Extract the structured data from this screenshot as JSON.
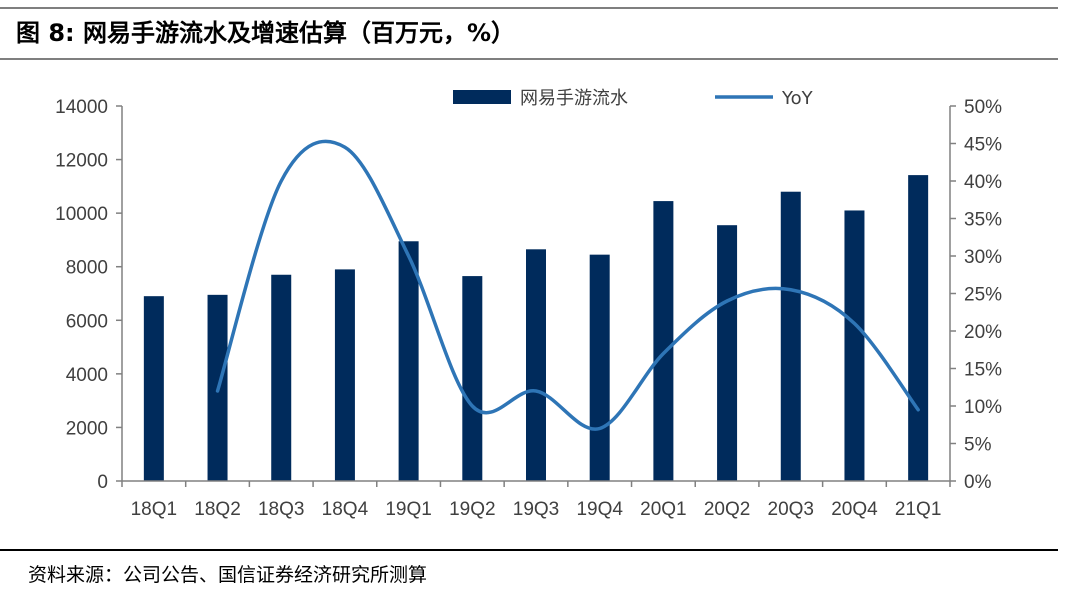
{
  "figure": {
    "title": "图 8:  网易手游流水及增速估算（百万元，%）",
    "source": "资料来源：公司公告、国信证券经济研究所测算"
  },
  "chart_data": {
    "type": "bar+line",
    "categories": [
      "18Q1",
      "18Q2",
      "18Q3",
      "18Q4",
      "19Q1",
      "19Q2",
      "19Q3",
      "19Q4",
      "20Q1",
      "20Q2",
      "20Q3",
      "20Q4",
      "21Q1"
    ],
    "series": [
      {
        "name": "网易手游流水",
        "type": "bar",
        "axis": "left",
        "color": "#002b5c",
        "values": [
          6900,
          6950,
          7700,
          7900,
          8950,
          7650,
          8650,
          8450,
          10450,
          9550,
          10800,
          10100,
          11420
        ]
      },
      {
        "name": "YoY",
        "type": "line",
        "axis": "right",
        "color": "#2e75b6",
        "smooth": true,
        "values": [
          null,
          12,
          40,
          44.5,
          30,
          10,
          12,
          7,
          17,
          24,
          25.5,
          21,
          9.5
        ]
      }
    ],
    "y_left": {
      "lim": [
        0,
        14000
      ],
      "ticks": [
        "0",
        "2000",
        "4000",
        "6000",
        "8000",
        "10000",
        "12000",
        "14000"
      ]
    },
    "y_right": {
      "lim": [
        0,
        50
      ],
      "ticks": [
        "0%",
        "5%",
        "10%",
        "15%",
        "20%",
        "25%",
        "30%",
        "35%",
        "40%",
        "45%",
        "50%"
      ]
    },
    "legend": {
      "position": "top-center",
      "entries": [
        "网易手游流水",
        "YoY"
      ]
    },
    "grid": false
  }
}
